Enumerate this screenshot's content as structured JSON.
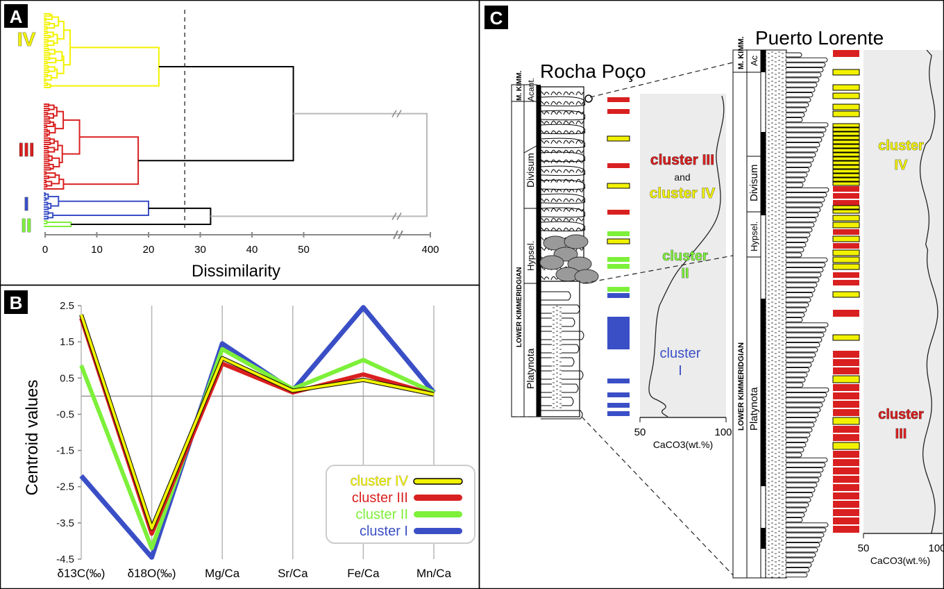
{
  "panel_labels": [
    "A",
    "B",
    "C"
  ],
  "chart_data": [
    {
      "type": "dendrogram",
      "panel": "A",
      "xlabel": "Dissimilarity",
      "x_ticks": [
        "0",
        "10",
        "20",
        "30",
        "40",
        "50",
        "400"
      ],
      "xlim": [
        0,
        400
      ],
      "axis_break": "between 50 and 400",
      "cut_line_x": 27,
      "clusters": [
        {
          "label": "IV",
          "color": "#f2f200",
          "merge_height": 22
        },
        {
          "label": "III",
          "color": "#d92020",
          "merge_height": 18
        },
        {
          "label": "I",
          "color": "#3a4fc6",
          "merge_height": 20
        },
        {
          "label": "II",
          "color": "#7df03a",
          "merge_height": 5
        }
      ],
      "joins": [
        {
          "members": [
            "IV",
            "III"
          ],
          "height": 48
        },
        {
          "members": [
            "I",
            "II"
          ],
          "height": 32
        },
        {
          "members": [
            "IV+III",
            "I+II"
          ],
          "height": 400
        }
      ]
    },
    {
      "type": "line",
      "panel": "B",
      "categories": [
        "δ13C(‰)",
        "δ18O(‰)",
        "Mg/Ca",
        "Sr/Ca",
        "Fe/Ca",
        "Mn/Ca"
      ],
      "ylabel": "Centroid values",
      "ylim": [
        -4.5,
        2.5
      ],
      "y_ticks": [
        "2.5",
        "1.5",
        "0.5",
        "-0.5",
        "-1.5",
        "-2.5",
        "-3.5",
        "-4.5"
      ],
      "legend_position": "bottom-right",
      "series": [
        {
          "name": "cluster I",
          "color": "#3a4fc6",
          "values": [
            -2.2,
            -4.45,
            1.45,
            0.15,
            2.45,
            0.1
          ]
        },
        {
          "name": "cluster II",
          "color": "#7df03a",
          "values": [
            0.85,
            -4.2,
            1.3,
            0.2,
            1.0,
            0.1
          ]
        },
        {
          "name": "cluster III",
          "color": "#d92020",
          "values": [
            2.15,
            -3.8,
            0.9,
            0.1,
            0.6,
            0.05
          ]
        },
        {
          "name": "cluster IV",
          "color": "#f2f200",
          "values": [
            2.25,
            -3.65,
            1.05,
            0.15,
            0.45,
            0.05
          ]
        }
      ]
    },
    {
      "type": "stratigraphic-section",
      "panel": "C",
      "sections": [
        {
          "name": "Rocha Poço",
          "stage_labels": [
            "M. KIMM.",
            "LOWER KIMMERIDGIAN"
          ],
          "zone_labels": [
            "Acant.",
            "Divisum",
            "Hypsel.",
            "Platynota"
          ],
          "cluster_annotations": [
            "cluster III",
            "and",
            "cluster IV",
            "cluster",
            "II",
            "cluster",
            "I"
          ],
          "caco3_axis": {
            "label": "CaCO3(wt.%)",
            "ticks": [
              "50",
              "100"
            ],
            "xlim": [
              50,
              100
            ]
          }
        },
        {
          "name": "Puerto Lorente",
          "stage_labels": [
            "M. KIMM.",
            "LOWER KIMMERIDGIAN"
          ],
          "zone_labels": [
            "Ac",
            "Divisum",
            "Hypsel.",
            "Platynota"
          ],
          "cluster_annotations": [
            "cluster",
            "IV",
            "cluster",
            "III"
          ],
          "caco3_axis": {
            "label": "CaCO3(wt.%)",
            "ticks": [
              "50",
              "100"
            ],
            "xlim": [
              50,
              100
            ]
          }
        }
      ]
    }
  ]
}
